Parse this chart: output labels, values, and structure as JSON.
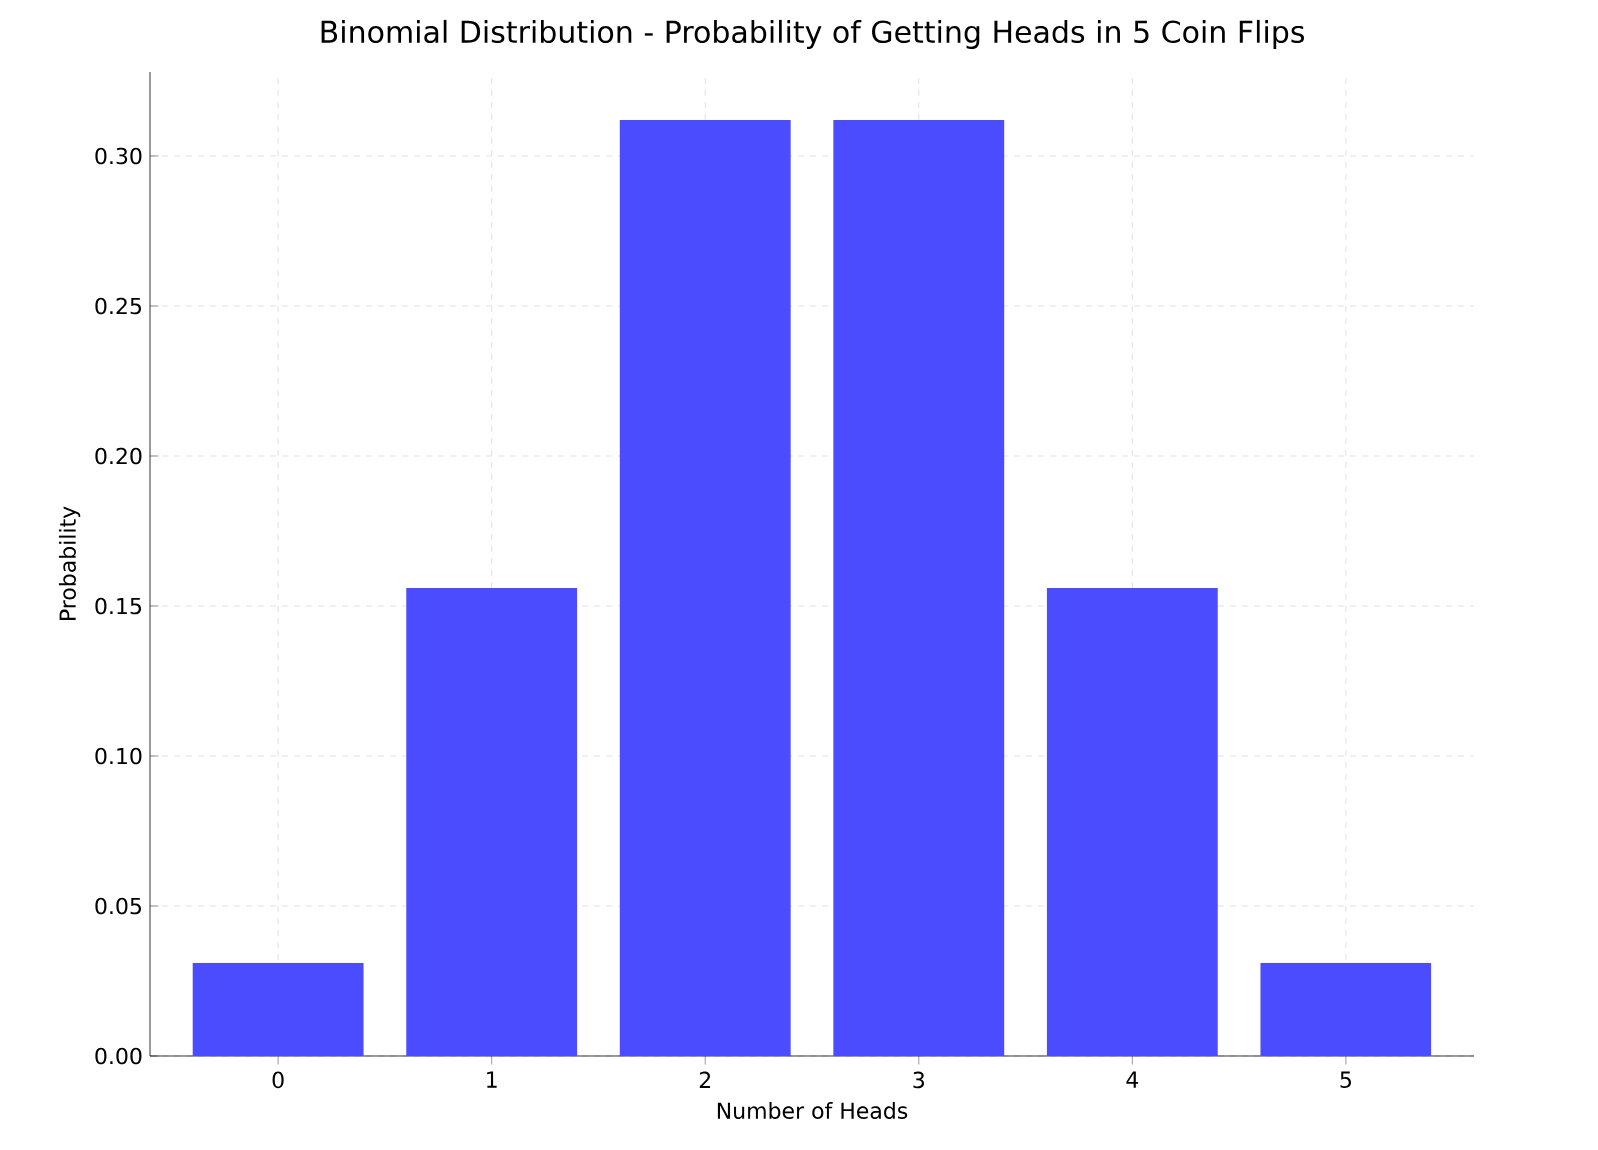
{
  "chart_data": {
    "type": "bar",
    "title": "Binomial Distribution - Probability of Getting Heads in 5 Coin Flips",
    "xlabel": "Number of Heads",
    "ylabel": "Probability",
    "categories": [
      "0",
      "1",
      "2",
      "3",
      "4",
      "5"
    ],
    "values": [
      0.031,
      0.156,
      0.312,
      0.312,
      0.156,
      0.031
    ],
    "color": "#4c4cff",
    "ylim": [
      0,
      0.328
    ],
    "yticks": [
      {
        "value": 0,
        "label": "0.00"
      },
      {
        "value": 0.05,
        "label": "0.05"
      },
      {
        "value": 0.1,
        "label": "0.10"
      },
      {
        "value": 0.15,
        "label": "0.15"
      },
      {
        "value": 0.2,
        "label": "0.20"
      },
      {
        "value": 0.25,
        "label": "0.25"
      },
      {
        "value": 0.3,
        "label": "0.30"
      }
    ],
    "grid": true
  }
}
